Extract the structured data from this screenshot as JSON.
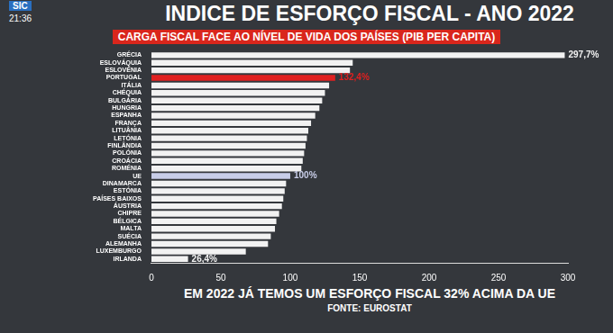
{
  "overlay": {
    "channel": "SIC",
    "time": "21:36"
  },
  "chart_data": {
    "type": "bar",
    "orientation": "horizontal",
    "title": "INDICE DE ESFORÇO FISCAL - ANO 2022",
    "subtitle": "CARGA FISCAL FACE AO NÍVEL DE VIDA DOS PAÍSES (PIB PER CAPITA)",
    "categories": [
      "GRÉCIA",
      "ESLOVÁQUIA",
      "ESLOVÉNIA",
      "PORTUGAL",
      "ITÁLIA",
      "CHÉQUIA",
      "BULGÁRIA",
      "HUNGRIA",
      "ESPANHA",
      "FRANÇA",
      "LITUÂNIA",
      "LETÓNIA",
      "FINLÂNDIA",
      "POLÓNIA",
      "CROÁCIA",
      "ROMÉNIA",
      "UE",
      "DINAMARCA",
      "ESTÓNIA",
      "PAÍSES BAIXOS",
      "ÁUSTRIA",
      "CHIPRE",
      "BÉLGICA",
      "MALTA",
      "SUÉCIA",
      "ALEMANHA",
      "LUXEMBURGO",
      "IRLANDA"
    ],
    "values": [
      297.7,
      145,
      143,
      132.4,
      128,
      125,
      123,
      121,
      118,
      115,
      113,
      112,
      111,
      110,
      109,
      108,
      100,
      97,
      96,
      95,
      94,
      92,
      90,
      89,
      86,
      84,
      68,
      26.4
    ],
    "value_labels": [
      "297,7%",
      null,
      null,
      "132,4%",
      null,
      null,
      null,
      null,
      null,
      null,
      null,
      null,
      null,
      null,
      null,
      null,
      "100%",
      null,
      null,
      null,
      null,
      null,
      null,
      null,
      null,
      null,
      null,
      "26,4%"
    ],
    "colors": [
      "#f2f2f2",
      "#f2f2f2",
      "#f2f2f2",
      "#e02020",
      "#f2f2f2",
      "#f2f2f2",
      "#f2f2f2",
      "#f2f2f2",
      "#f2f2f2",
      "#f2f2f2",
      "#f2f2f2",
      "#f2f2f2",
      "#f2f2f2",
      "#f2f2f2",
      "#f2f2f2",
      "#f2f2f2",
      "#c8cde8",
      "#f2f2f2",
      "#f2f2f2",
      "#f2f2f2",
      "#f2f2f2",
      "#f2f2f2",
      "#f2f2f2",
      "#f2f2f2",
      "#f2f2f2",
      "#f2f2f2",
      "#f2f2f2",
      "#f2f2f2"
    ],
    "xlim": [
      0,
      300
    ],
    "xticks": [
      0,
      50,
      100,
      150,
      200,
      250,
      300
    ],
    "grid": false,
    "data_labels": true,
    "annotation": "EM 2022 JÁ TEMOS UM ESFORÇO FISCAL 32% ACIMA DA UE",
    "source": "FONTE: EUROSTAT"
  }
}
